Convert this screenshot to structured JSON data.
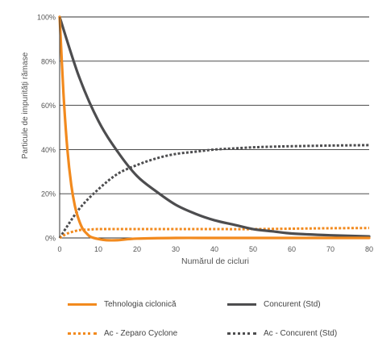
{
  "chart_data": {
    "type": "line",
    "title": "",
    "xlabel": "Numărul de cicluri",
    "ylabel": "Particule de impurități rămase",
    "xlim": [
      0,
      80
    ],
    "ylim": [
      0,
      100
    ],
    "x_ticks": [
      "0",
      "10",
      "20",
      "30",
      "40",
      "50",
      "60",
      "70",
      "80"
    ],
    "y_ticks": [
      "0%",
      "20%",
      "40%",
      "60%",
      "80%",
      "100%"
    ],
    "grid": "horizontal",
    "legend_position": "bottom",
    "series": [
      {
        "name": "Tehnologia ciclonică",
        "color": "#f28a1e",
        "style": "solid",
        "x": [
          0,
          1,
          2,
          3,
          4,
          5,
          6,
          7,
          8,
          10,
          12,
          15,
          20,
          30,
          40,
          50,
          60,
          70,
          80
        ],
        "values": [
          100,
          65,
          40,
          24,
          14,
          8,
          4,
          2,
          0.5,
          -0.5,
          -1,
          -1,
          -0.3,
          0,
          0,
          0,
          0,
          0,
          0
        ]
      },
      {
        "name": "Concurent (Std)",
        "color": "#4d4d4f",
        "style": "solid",
        "x": [
          0,
          5,
          10,
          15,
          20,
          25,
          30,
          35,
          40,
          45,
          50,
          55,
          60,
          70,
          80
        ],
        "values": [
          100,
          73,
          53,
          39,
          28,
          21,
          15,
          11,
          8,
          6,
          4,
          3,
          2,
          1.2,
          0.7
        ]
      },
      {
        "name": "Ac - Zeparo Cyclone",
        "color": "#f28a1e",
        "style": "dotted",
        "x": [
          0,
          2,
          5,
          8,
          10,
          20,
          30,
          40,
          50,
          60,
          70,
          80
        ],
        "values": [
          0,
          2,
          3.5,
          3.8,
          4,
          4,
          4,
          4,
          4,
          4.2,
          4.4,
          4.5
        ]
      },
      {
        "name": "Ac - Concurent (Std)",
        "color": "#4d4d4f",
        "style": "dotted",
        "x": [
          0,
          5,
          10,
          15,
          20,
          25,
          30,
          35,
          40,
          45,
          50,
          55,
          60,
          70,
          80
        ],
        "values": [
          0,
          13,
          22,
          29,
          33,
          36,
          38,
          39,
          40,
          40.5,
          41,
          41.3,
          41.5,
          41.8,
          42
        ]
      }
    ]
  }
}
